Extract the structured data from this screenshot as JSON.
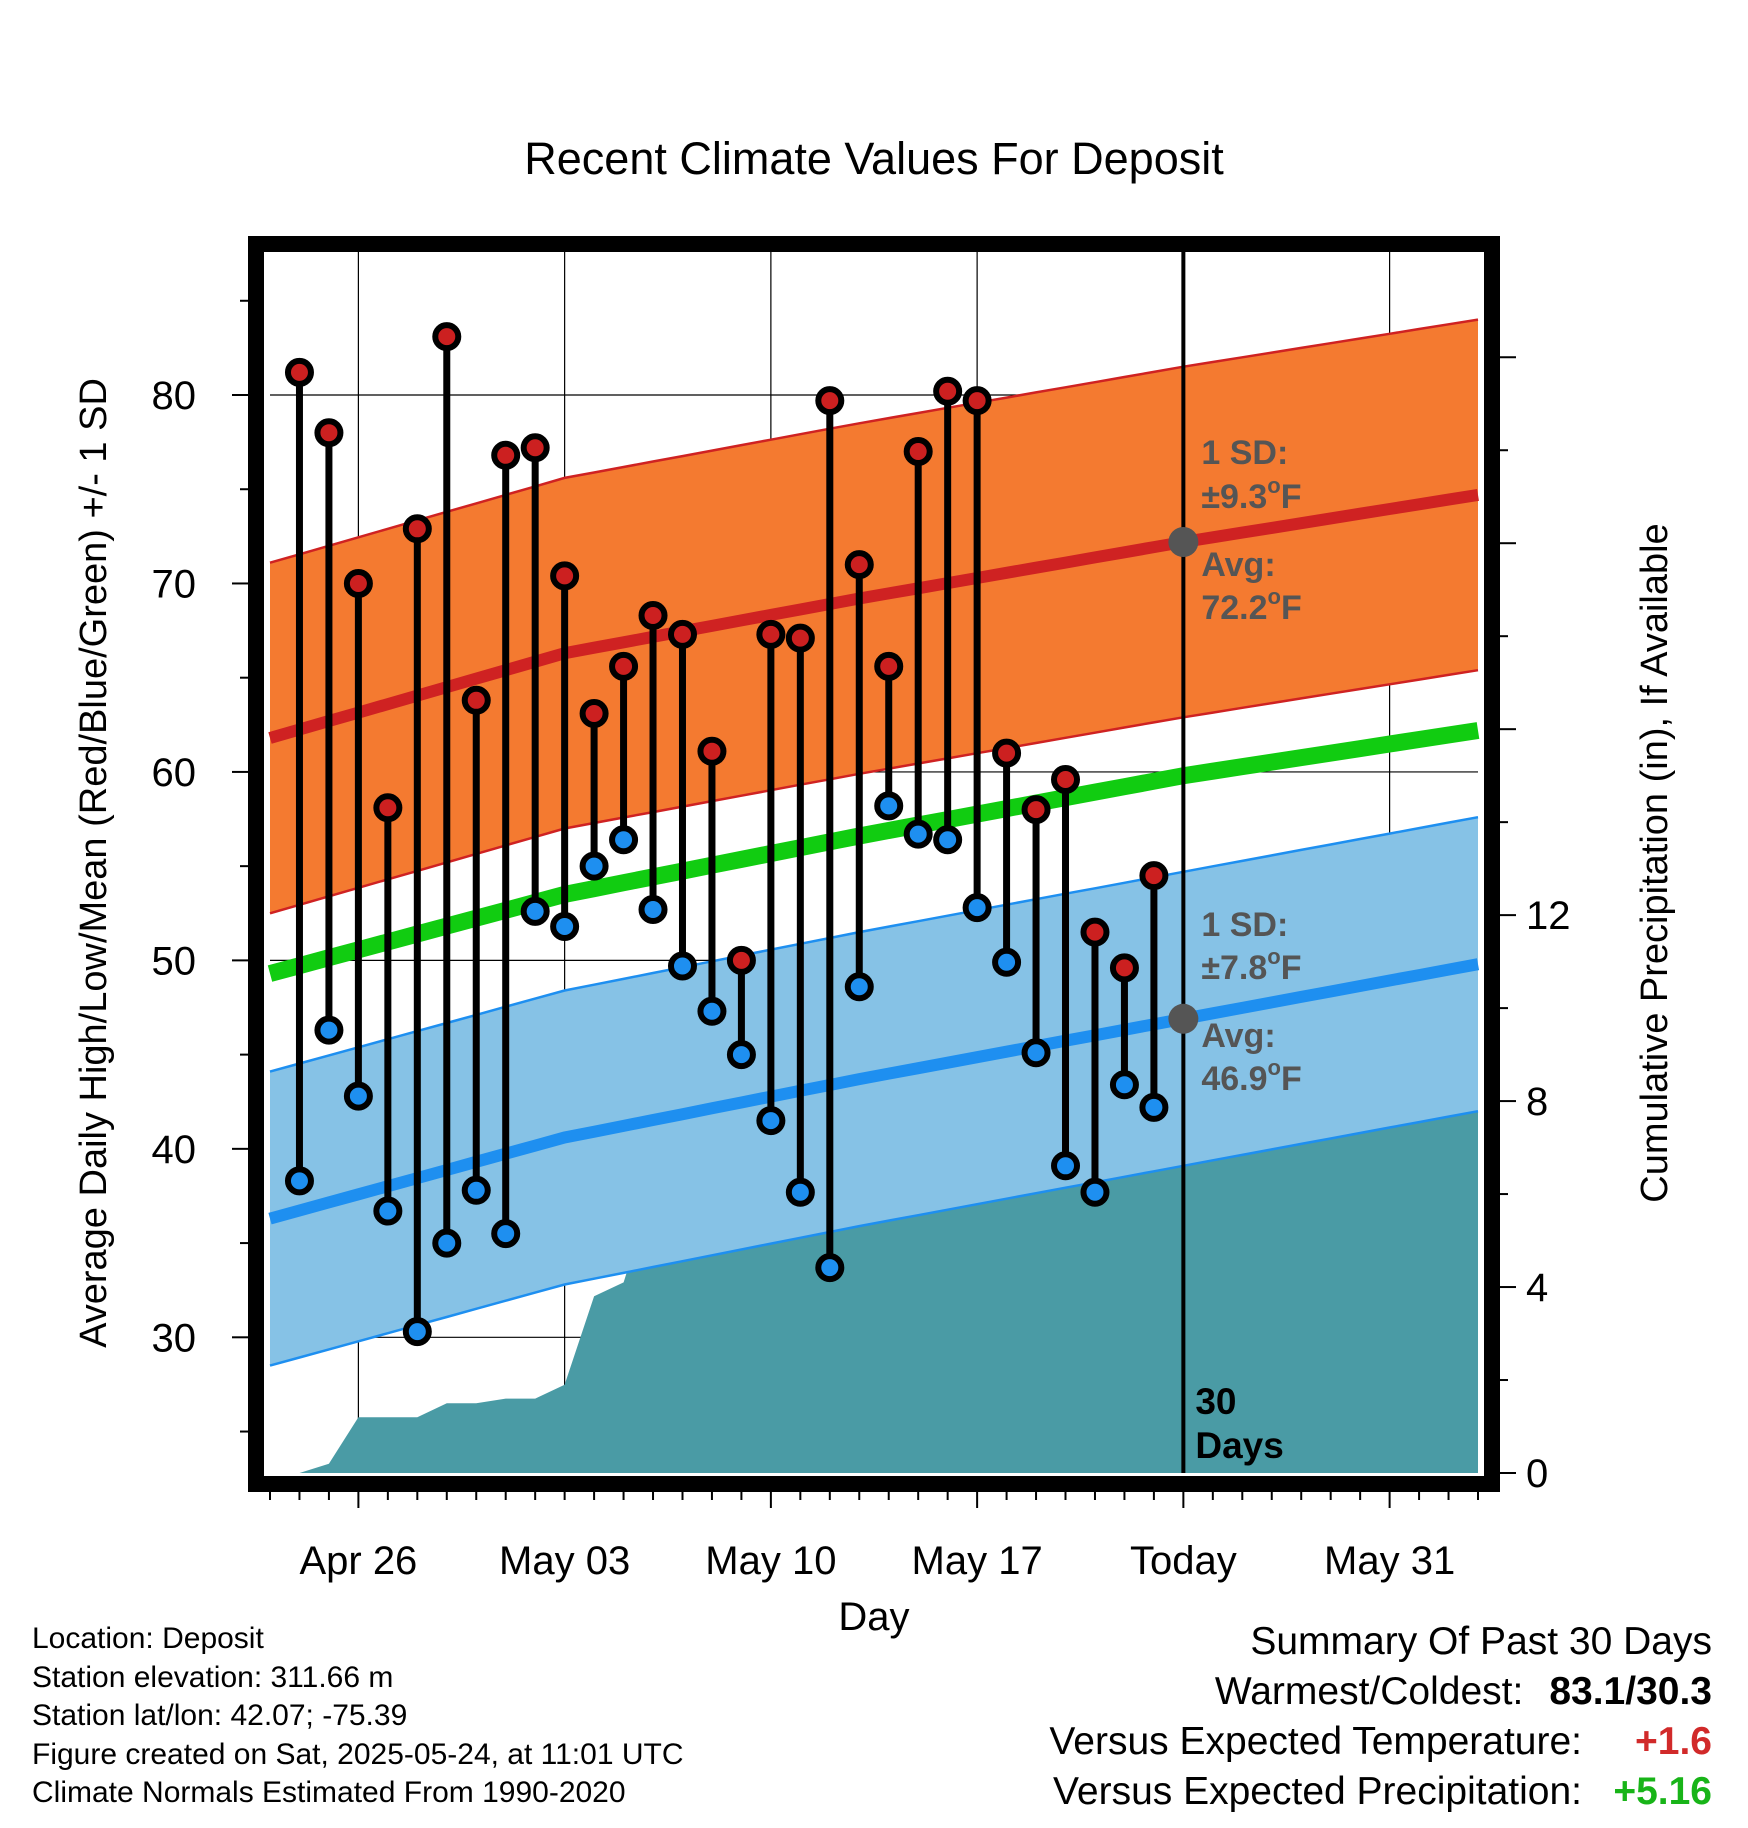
{
  "title": "Recent Climate Values For Deposit",
  "colors": {
    "high_dot": "#cc2020",
    "low_dot": "#1e8ff0",
    "high_band": "#f47a30",
    "high_line": "#cf2222",
    "low_band": "#86c2e6",
    "low_line": "#1e8ff0",
    "mean_line": "#11cc11",
    "precip_fill": "#4a9ba5",
    "annotation": "#555555"
  },
  "chart_data": {
    "type": "line",
    "xlabel": "Day",
    "ylabel": "Average Daily High/Low/Mean (Red/Blue/Green) +/- 1 SD",
    "y2label": "Cumulative Precipitation (in), If Available",
    "ylim": [
      22.8,
      87.8
    ],
    "y_ticks": [
      "30",
      "40",
      "50",
      "60",
      "70",
      "80"
    ],
    "y2lim": [
      0,
      26.35
    ],
    "y2_ticks": [
      "0",
      "4",
      "8",
      "12"
    ],
    "x_dates": [
      "Apr 23",
      "Jun 03"
    ],
    "x_ticks": [
      "Apr 26",
      "May 03",
      "May 10",
      "May 17",
      "Today",
      "May 31"
    ],
    "today": "May 24",
    "grid": true,
    "observations": {
      "dates": [
        "Apr 24",
        "Apr 25",
        "Apr 26",
        "Apr 27",
        "Apr 28",
        "Apr 29",
        "Apr 30",
        "May 01",
        "May 02",
        "May 03",
        "May 04",
        "May 05",
        "May 06",
        "May 07",
        "May 08",
        "May 09",
        "May 10",
        "May 11",
        "May 12",
        "May 13",
        "May 14",
        "May 15",
        "May 16",
        "May 17",
        "May 18",
        "May 19",
        "May 20",
        "May 21",
        "May 22",
        "May 23"
      ],
      "highs": [
        81.2,
        78.0,
        70.0,
        58.1,
        72.9,
        83.1,
        63.8,
        76.8,
        77.2,
        70.4,
        63.1,
        65.6,
        68.3,
        67.3,
        61.1,
        50.0,
        67.3,
        67.1,
        79.7,
        71.0,
        65.6,
        77.0,
        80.2,
        79.7,
        61.0,
        58.0,
        59.6,
        51.5,
        49.6,
        54.5
      ],
      "lows": [
        38.3,
        46.3,
        42.8,
        36.7,
        30.3,
        35.0,
        37.8,
        35.5,
        52.6,
        51.8,
        55.0,
        56.4,
        52.7,
        49.7,
        47.3,
        45.0,
        41.5,
        37.7,
        33.7,
        48.6,
        58.2,
        56.7,
        56.4,
        52.8,
        49.9,
        45.1,
        39.1,
        37.7,
        43.4,
        42.2
      ]
    },
    "series": [
      {
        "name": "Average Daily High",
        "dates": [
          "Apr 23",
          "May 03",
          "May 13",
          "May 24",
          "Jun 03"
        ],
        "values": [
          61.8,
          66.3,
          69.2,
          72.2,
          74.7
        ],
        "sd": 9.3
      },
      {
        "name": "Average Daily Low",
        "dates": [
          "Apr 23",
          "May 03",
          "May 13",
          "May 24",
          "Jun 03"
        ],
        "values": [
          36.3,
          40.6,
          43.7,
          46.9,
          49.8
        ],
        "sd": 7.8
      },
      {
        "name": "Average Daily Mean",
        "dates": [
          "Apr 23",
          "May 03",
          "May 13",
          "May 24",
          "Jun 03"
        ],
        "values": [
          49.3,
          53.5,
          56.6,
          59.8,
          62.2
        ]
      },
      {
        "name": "Cumulative Precipitation",
        "dates": [
          "Apr 23",
          "Apr 24",
          "Apr 25",
          "Apr 26",
          "Apr 27",
          "Apr 28",
          "Apr 29",
          "Apr 30",
          "May 01",
          "May 02",
          "May 03",
          "May 04",
          "May 05",
          "May 06",
          "May 07",
          "May 08",
          "May 09",
          "May 10",
          "May 11",
          "May 12",
          "May 13",
          "May 14",
          "May 15",
          "May 16",
          "May 17",
          "May 18",
          "May 19",
          "May 20",
          "May 21",
          "May 22",
          "May 23",
          "Jun 03"
        ],
        "values": [
          0,
          0,
          0.2,
          1.2,
          1.2,
          1.2,
          1.5,
          1.5,
          1.6,
          1.6,
          1.9,
          3.8,
          4.1,
          6.1,
          6.1,
          6.1,
          7.3,
          7.4,
          7.4,
          7.4,
          7.5,
          7.7,
          7.7,
          7.8,
          7.9,
          7.9,
          7.9,
          7.9,
          8.3,
          8.7,
          8.8,
          8.8
        ]
      }
    ],
    "annotations": {
      "high_sd_label": "1 SD:",
      "high_sd_value": "±9.3",
      "high_avg_label": "Avg:",
      "high_avg_value": "72.2",
      "low_sd_label": "1 SD:",
      "low_sd_value": "±7.8",
      "low_avg_label": "Avg:",
      "low_avg_value": "46.9",
      "degree": "o",
      "unit": "F",
      "days_label_1": "30",
      "days_label_2": "Days"
    }
  },
  "info": {
    "location": "Location: Deposit",
    "elevation": "Station elevation: 311.66 m",
    "latlon": "Station lat/lon: 42.07; -75.39",
    "created": "Figure created on Sat, 2025-05-24, at 11:01 UTC",
    "normals": "Climate Normals Estimated From 1990-2020"
  },
  "summary": {
    "title": "Summary Of Past 30 Days",
    "warm_cold_label": "Warmest/Coldest:",
    "warm_cold_value": "83.1/30.3",
    "temp_label": "Versus Expected Temperature:",
    "temp_value": "+1.6",
    "precip_label": "Versus Expected Precipitation:",
    "precip_value": "+5.16"
  }
}
